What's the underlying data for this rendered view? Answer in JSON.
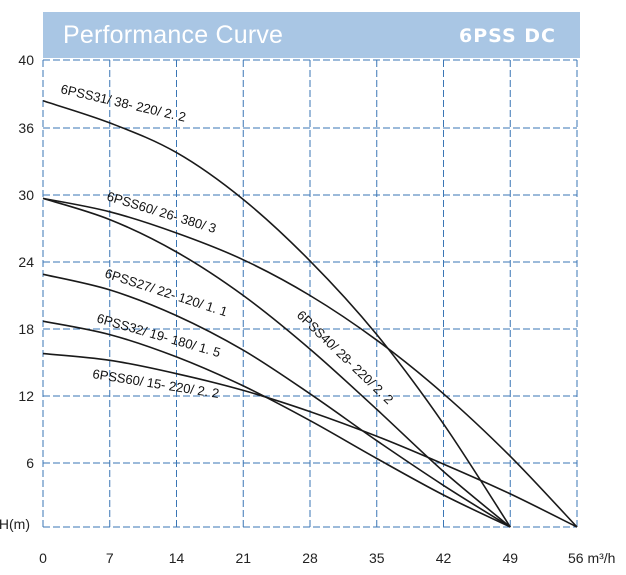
{
  "header": {
    "title": "Performance Curve",
    "code": "6PSS DC"
  },
  "chart_data": {
    "type": "line",
    "title": "Performance Curve",
    "xlabel": "m³/h",
    "ylabel": "H(m)",
    "xlim": [
      0,
      56
    ],
    "ylim": [
      0,
      40
    ],
    "x_ticks": [
      "0",
      "7",
      "14",
      "21",
      "28",
      "35",
      "42",
      "49",
      "56 m³/h"
    ],
    "y_ticks": [
      "40",
      "36",
      "30",
      "24",
      "18",
      "12",
      "6",
      "H(m)"
    ],
    "grid": true,
    "series": [
      {
        "name": "6PSS31/ 38- 220/ 2. 2",
        "x": [
          0,
          7,
          14,
          21,
          28,
          35,
          42,
          49
        ],
        "y": [
          37.6,
          36.3,
          33.8,
          29.6,
          24.1,
          17.5,
          9.5,
          0
        ]
      },
      {
        "name": "6PSS60/ 26- 380/ 3",
        "x": [
          0,
          7,
          14,
          21,
          28,
          35,
          42,
          49,
          56
        ],
        "y": [
          29.7,
          28.5,
          26.6,
          24.2,
          21.0,
          17.0,
          12.2,
          6.6,
          0
        ]
      },
      {
        "name": "6PSS27/ 22- 120/ 1. 1",
        "x": [
          0,
          7,
          14,
          21,
          28,
          35,
          42,
          49
        ],
        "y": [
          22.9,
          21.5,
          19.2,
          16.1,
          12.2,
          8.0,
          3.9,
          0
        ]
      },
      {
        "name": "6PSS32/ 19- 180/ 1. 5",
        "x": [
          0,
          7,
          14,
          21,
          28,
          35,
          42,
          49
        ],
        "y": [
          18.7,
          17.5,
          15.5,
          12.9,
          9.8,
          6.4,
          3.0,
          0
        ]
      },
      {
        "name": "6PSS60/ 15- 220/ 2. 2",
        "x": [
          0,
          7,
          14,
          21,
          28,
          35,
          42,
          49,
          56
        ],
        "y": [
          15.8,
          15.2,
          14.0,
          12.5,
          10.6,
          8.4,
          5.9,
          3.1,
          0
        ]
      },
      {
        "name": "6PSS40/ 28- 220/ 2. 2",
        "x": [
          0,
          7,
          14,
          21,
          28,
          35,
          42,
          49
        ],
        "y": [
          29.7,
          27.8,
          24.9,
          21.0,
          16.2,
          10.8,
          5.2,
          0
        ]
      }
    ]
  }
}
